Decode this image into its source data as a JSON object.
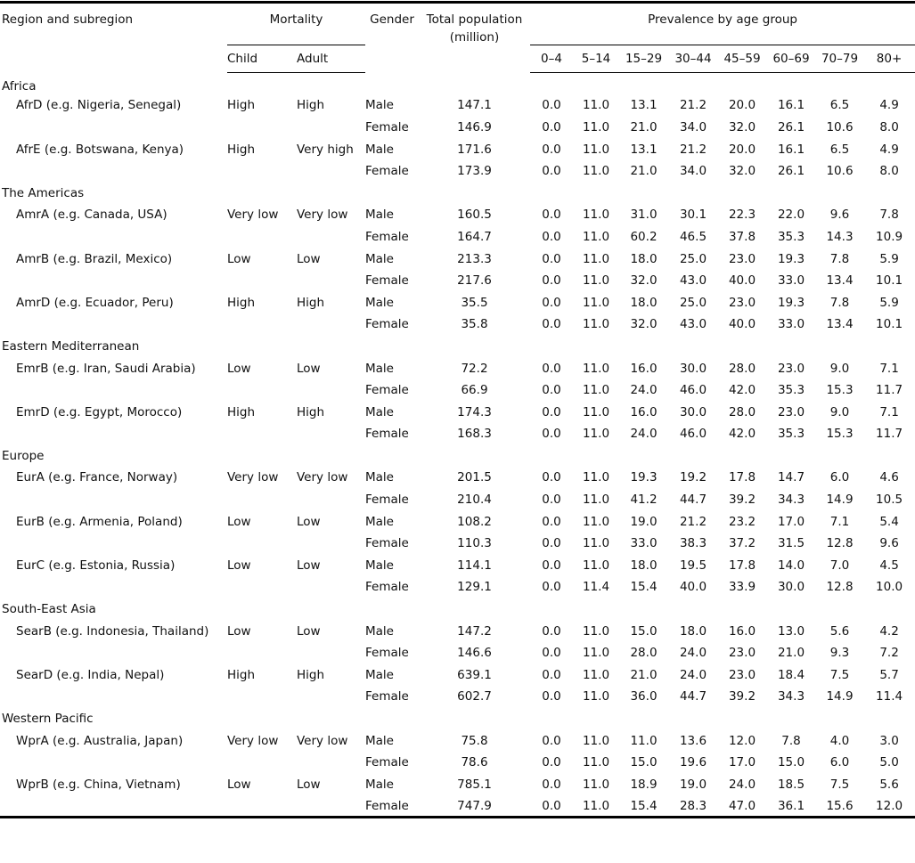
{
  "table": {
    "headers": {
      "region": "Region and subregion",
      "mortality": "Mortality",
      "child": "Child",
      "adult": "Adult",
      "gender": "Gender",
      "population": "Total population",
      "population_unit": "(million)",
      "prevalence": "Prevalence by age group",
      "age_groups": [
        "0–4",
        "5–14",
        "15–29",
        "30–44",
        "45–59",
        "60–69",
        "70–79",
        "80+"
      ]
    },
    "regions": [
      {
        "name": "Africa",
        "subregions": [
          {
            "name": "AfrD (e.g. Nigeria, Senegal)",
            "child": "High",
            "adult": "High",
            "rows": [
              {
                "gender": "Male",
                "population": "147.1",
                "prevalence": [
                  "0.0",
                  "11.0",
                  "13.1",
                  "21.2",
                  "20.0",
                  "16.1",
                  "6.5",
                  "4.9"
                ]
              },
              {
                "gender": "Female",
                "population": "146.9",
                "prevalence": [
                  "0.0",
                  "11.0",
                  "21.0",
                  "34.0",
                  "32.0",
                  "26.1",
                  "10.6",
                  "8.0"
                ]
              }
            ]
          },
          {
            "name": "AfrE (e.g. Botswana, Kenya)",
            "child": "High",
            "adult": "Very high",
            "rows": [
              {
                "gender": "Male",
                "population": "171.6",
                "prevalence": [
                  "0.0",
                  "11.0",
                  "13.1",
                  "21.2",
                  "20.0",
                  "16.1",
                  "6.5",
                  "4.9"
                ]
              },
              {
                "gender": "Female",
                "population": "173.9",
                "prevalence": [
                  "0.0",
                  "11.0",
                  "21.0",
                  "34.0",
                  "32.0",
                  "26.1",
                  "10.6",
                  "8.0"
                ]
              }
            ]
          }
        ]
      },
      {
        "name": "The Americas",
        "subregions": [
          {
            "name": "AmrA (e.g. Canada, USA)",
            "child": "Very low",
            "adult": "Very low",
            "rows": [
              {
                "gender": "Male",
                "population": "160.5",
                "prevalence": [
                  "0.0",
                  "11.0",
                  "31.0",
                  "30.1",
                  "22.3",
                  "22.0",
                  "9.6",
                  "7.8"
                ]
              },
              {
                "gender": "Female",
                "population": "164.7",
                "prevalence": [
                  "0.0",
                  "11.0",
                  "60.2",
                  "46.5",
                  "37.8",
                  "35.3",
                  "14.3",
                  "10.9"
                ]
              }
            ]
          },
          {
            "name": "AmrB (e.g. Brazil, Mexico)",
            "child": "Low",
            "adult": "Low",
            "rows": [
              {
                "gender": "Male",
                "population": "213.3",
                "prevalence": [
                  "0.0",
                  "11.0",
                  "18.0",
                  "25.0",
                  "23.0",
                  "19.3",
                  "7.8",
                  "5.9"
                ]
              },
              {
                "gender": "Female",
                "population": "217.6",
                "prevalence": [
                  "0.0",
                  "11.0",
                  "32.0",
                  "43.0",
                  "40.0",
                  "33.0",
                  "13.4",
                  "10.1"
                ]
              }
            ]
          },
          {
            "name": "AmrD (e.g. Ecuador, Peru)",
            "child": "High",
            "adult": "High",
            "rows": [
              {
                "gender": "Male",
                "population": "35.5",
                "prevalence": [
                  "0.0",
                  "11.0",
                  "18.0",
                  "25.0",
                  "23.0",
                  "19.3",
                  "7.8",
                  "5.9"
                ]
              },
              {
                "gender": "Female",
                "population": "35.8",
                "prevalence": [
                  "0.0",
                  "11.0",
                  "32.0",
                  "43.0",
                  "40.0",
                  "33.0",
                  "13.4",
                  "10.1"
                ]
              }
            ]
          }
        ]
      },
      {
        "name": "Eastern Mediterranean",
        "subregions": [
          {
            "name": "EmrB (e.g. Iran, Saudi Arabia)",
            "child": "Low",
            "adult": "Low",
            "rows": [
              {
                "gender": "Male",
                "population": "72.2",
                "prevalence": [
                  "0.0",
                  "11.0",
                  "16.0",
                  "30.0",
                  "28.0",
                  "23.0",
                  "9.0",
                  "7.1"
                ]
              },
              {
                "gender": "Female",
                "population": "66.9",
                "prevalence": [
                  "0.0",
                  "11.0",
                  "24.0",
                  "46.0",
                  "42.0",
                  "35.3",
                  "15.3",
                  "11.7"
                ]
              }
            ]
          },
          {
            "name": "EmrD (e.g. Egypt, Morocco)",
            "child": "High",
            "adult": "High",
            "rows": [
              {
                "gender": "Male",
                "population": "174.3",
                "prevalence": [
                  "0.0",
                  "11.0",
                  "16.0",
                  "30.0",
                  "28.0",
                  "23.0",
                  "9.0",
                  "7.1"
                ]
              },
              {
                "gender": "Female",
                "population": "168.3",
                "prevalence": [
                  "0.0",
                  "11.0",
                  "24.0",
                  "46.0",
                  "42.0",
                  "35.3",
                  "15.3",
                  "11.7"
                ]
              }
            ]
          }
        ]
      },
      {
        "name": "Europe",
        "subregions": [
          {
            "name": "EurA (e.g. France, Norway)",
            "child": "Very low",
            "adult": "Very low",
            "rows": [
              {
                "gender": "Male",
                "population": "201.5",
                "prevalence": [
                  "0.0",
                  "11.0",
                  "19.3",
                  "19.2",
                  "17.8",
                  "14.7",
                  "6.0",
                  "4.6"
                ]
              },
              {
                "gender": "Female",
                "population": "210.4",
                "prevalence": [
                  "0.0",
                  "11.0",
                  "41.2",
                  "44.7",
                  "39.2",
                  "34.3",
                  "14.9",
                  "10.5"
                ]
              }
            ]
          },
          {
            "name": "EurB (e.g. Armenia, Poland)",
            "child": "Low",
            "adult": "Low",
            "rows": [
              {
                "gender": "Male",
                "population": "108.2",
                "prevalence": [
                  "0.0",
                  "11.0",
                  "19.0",
                  "21.2",
                  "23.2",
                  "17.0",
                  "7.1",
                  "5.4"
                ]
              },
              {
                "gender": "Female",
                "population": "110.3",
                "prevalence": [
                  "0.0",
                  "11.0",
                  "33.0",
                  "38.3",
                  "37.2",
                  "31.5",
                  "12.8",
                  "9.6"
                ]
              }
            ]
          },
          {
            "name": "EurC (e.g. Estonia, Russia)",
            "child": "Low",
            "adult": "Low",
            "rows": [
              {
                "gender": "Male",
                "population": "114.1",
                "prevalence": [
                  "0.0",
                  "11.0",
                  "18.0",
                  "19.5",
                  "17.8",
                  "14.0",
                  "7.0",
                  "4.5"
                ]
              },
              {
                "gender": "Female",
                "population": "129.1",
                "prevalence": [
                  "0.0",
                  "11.4",
                  "15.4",
                  "40.0",
                  "33.9",
                  "30.0",
                  "12.8",
                  "10.0"
                ]
              }
            ]
          }
        ]
      },
      {
        "name": "South-East Asia",
        "subregions": [
          {
            "name": "SearB (e.g. Indonesia, Thailand)",
            "child": "Low",
            "adult": "Low",
            "rows": [
              {
                "gender": "Male",
                "population": "147.2",
                "prevalence": [
                  "0.0",
                  "11.0",
                  "15.0",
                  "18.0",
                  "16.0",
                  "13.0",
                  "5.6",
                  "4.2"
                ]
              },
              {
                "gender": "Female",
                "population": "146.6",
                "prevalence": [
                  "0.0",
                  "11.0",
                  "28.0",
                  "24.0",
                  "23.0",
                  "21.0",
                  "9.3",
                  "7.2"
                ]
              }
            ]
          },
          {
            "name": "SearD (e.g. India, Nepal)",
            "child": "High",
            "adult": "High",
            "rows": [
              {
                "gender": "Male",
                "population": "639.1",
                "prevalence": [
                  "0.0",
                  "11.0",
                  "21.0",
                  "24.0",
                  "23.0",
                  "18.4",
                  "7.5",
                  "5.7"
                ]
              },
              {
                "gender": "Female",
                "population": "602.7",
                "prevalence": [
                  "0.0",
                  "11.0",
                  "36.0",
                  "44.7",
                  "39.2",
                  "34.3",
                  "14.9",
                  "11.4"
                ]
              }
            ]
          }
        ]
      },
      {
        "name": "Western Pacific",
        "subregions": [
          {
            "name": "WprA (e.g. Australia, Japan)",
            "child": "Very low",
            "adult": "Very low",
            "rows": [
              {
                "gender": "Male",
                "population": "75.8",
                "prevalence": [
                  "0.0",
                  "11.0",
                  "11.0",
                  "13.6",
                  "12.0",
                  "7.8",
                  "4.0",
                  "3.0"
                ]
              },
              {
                "gender": "Female",
                "population": "78.6",
                "prevalence": [
                  "0.0",
                  "11.0",
                  "15.0",
                  "19.6",
                  "17.0",
                  "15.0",
                  "6.0",
                  "5.0"
                ]
              }
            ]
          },
          {
            "name": "WprB (e.g. China, Vietnam)",
            "child": "Low",
            "adult": "Low",
            "rows": [
              {
                "gender": "Male",
                "population": "785.1",
                "prevalence": [
                  "0.0",
                  "11.0",
                  "18.9",
                  "19.0",
                  "24.0",
                  "18.5",
                  "7.5",
                  "5.6"
                ]
              },
              {
                "gender": "Female",
                "population": "747.9",
                "prevalence": [
                  "0.0",
                  "11.0",
                  "15.4",
                  "28.3",
                  "47.0",
                  "36.1",
                  "15.6",
                  "12.0"
                ]
              }
            ]
          }
        ]
      }
    ]
  }
}
